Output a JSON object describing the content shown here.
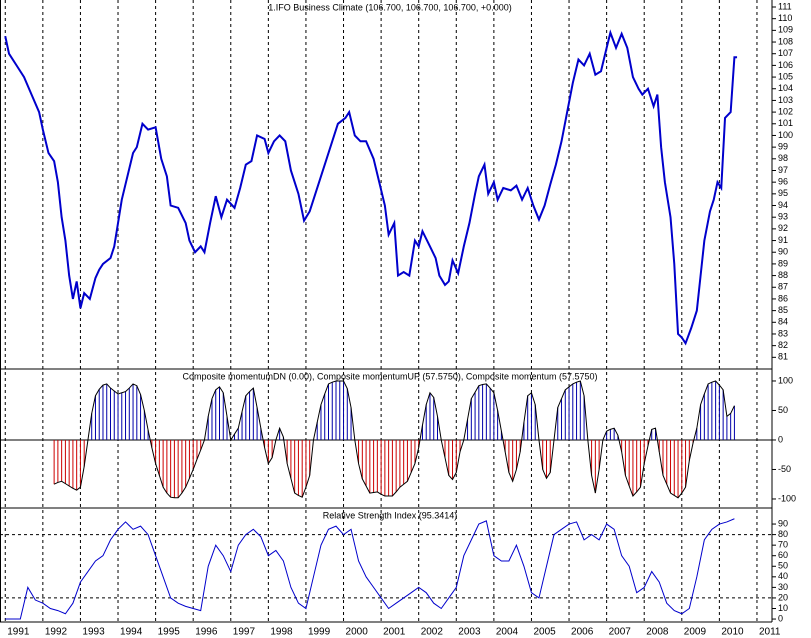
{
  "chart_data": [
    {
      "type": "line",
      "title": "1.IFO Business Climate (106.700, 106.700, 106.700, +0.000)",
      "color": "#0000cc",
      "x": [
        1991.0,
        1991.1,
        1991.3,
        1991.5,
        1991.7,
        1991.9,
        1992.0,
        1992.15,
        1992.3,
        1992.4,
        1992.5,
        1992.6,
        1992.7,
        1992.8,
        1992.9,
        1993.0,
        1993.1,
        1993.25,
        1993.4,
        1993.5,
        1993.6,
        1993.8,
        1993.9,
        1994.0,
        1994.1,
        1994.25,
        1994.4,
        1994.5,
        1994.65,
        1994.8,
        1995.0,
        1995.15,
        1995.3,
        1995.4,
        1995.6,
        1995.8,
        1995.9,
        1996.05,
        1996.2,
        1996.3,
        1996.45,
        1996.6,
        1996.75,
        1996.9,
        1997.1,
        1997.25,
        1997.4,
        1997.55,
        1997.7,
        1997.9,
        1998.0,
        1998.15,
        1998.3,
        1998.45,
        1998.6,
        1998.8,
        1998.95,
        1999.1,
        1999.25,
        1999.4,
        1999.55,
        1999.7,
        1999.85,
        2000.05,
        2000.15,
        2000.3,
        2000.45,
        2000.6,
        2000.8,
        2000.95,
        2001.1,
        2001.2,
        2001.35,
        2001.45,
        2001.6,
        2001.75,
        2001.9,
        2002.0,
        2002.1,
        2002.3,
        2002.45,
        2002.55,
        2002.7,
        2002.8,
        2002.9,
        2003.05,
        2003.2,
        2003.35,
        2003.5,
        2003.6,
        2003.75,
        2003.85,
        2004.0,
        2004.1,
        2004.25,
        2004.45,
        2004.6,
        2004.75,
        2004.9,
        2005.05,
        2005.2,
        2005.35,
        2005.5,
        2005.65,
        2005.8,
        2005.95,
        2006.1,
        2006.25,
        2006.4,
        2006.55,
        2006.7,
        2006.85,
        2007.0,
        2007.1,
        2007.25,
        2007.4,
        2007.55,
        2007.7,
        2007.85,
        2007.95,
        2008.1,
        2008.25,
        2008.35,
        2008.45,
        2008.55,
        2008.7,
        2008.8,
        2008.9,
        2009.0,
        2009.1,
        2009.25,
        2009.4,
        2009.5,
        2009.6,
        2009.75,
        2009.85,
        2009.95,
        2010.05,
        2010.15,
        2010.3,
        2010.4,
        2010.47
      ],
      "values": [
        108.5,
        107,
        106,
        105,
        103.5,
        102,
        100.5,
        98.5,
        97.8,
        96,
        93,
        91,
        88,
        86,
        87.5,
        85.2,
        86.5,
        86,
        87.8,
        88.5,
        89,
        89.5,
        90.5,
        92.5,
        94.5,
        96.5,
        98.5,
        99,
        101,
        100.5,
        100.7,
        98,
        96.5,
        94,
        93.8,
        92.5,
        91,
        90,
        90.5,
        90,
        92.5,
        94.8,
        93,
        94.5,
        93.8,
        95.5,
        97.5,
        97.8,
        100,
        99.7,
        98.5,
        99.5,
        100,
        99.5,
        97,
        95,
        92.7,
        93.5,
        95,
        96.5,
        98,
        99.5,
        101,
        101.5,
        102,
        100,
        99.5,
        99.5,
        98,
        96,
        94,
        91.5,
        92.5,
        88,
        88.3,
        88,
        91,
        90.5,
        91.8,
        90.5,
        89.5,
        88,
        87.2,
        87.5,
        89.3,
        88.2,
        90.5,
        92.5,
        95,
        96.5,
        97.5,
        95,
        96,
        94.5,
        95.5,
        95.3,
        95.7,
        94.5,
        95.5,
        94,
        92.8,
        94,
        95.8,
        97.5,
        99.5,
        102,
        104.5,
        106.5,
        106,
        107,
        105.2,
        105.5,
        107.5,
        108.8,
        107.5,
        108.7,
        107.5,
        105,
        104,
        103.5,
        104,
        102.5,
        103.5,
        99,
        96,
        93,
        89,
        83,
        82.7,
        82.2,
        83.5,
        85,
        88,
        91,
        93.5,
        94.5,
        96,
        95.5,
        101.5,
        102,
        106.7,
        106.7
      ],
      "xlim": [
        1990.86,
        2011.4
      ],
      "ylim": [
        80,
        111.6
      ],
      "yticks": [
        81,
        82,
        83,
        84,
        85,
        86,
        87,
        88,
        89,
        90,
        91,
        92,
        93,
        94,
        95,
        96,
        97,
        98,
        99,
        100,
        101,
        102,
        103,
        104,
        105,
        106,
        107,
        108,
        109,
        110,
        111
      ]
    },
    {
      "type": "bar",
      "title": "Composite momentumDN (0.00), Composite momentumUP (57.5750), Composite momentum (57.5750)",
      "color": "#000000",
      "positive_color": "#0000aa",
      "negative_color": "#cc0000",
      "x": [
        1992.3,
        1992.4,
        1992.5,
        1992.6,
        1992.7,
        1992.8,
        1992.9,
        1993.0,
        1993.1,
        1993.2,
        1993.3,
        1993.4,
        1993.5,
        1993.6,
        1993.7,
        1993.8,
        1993.9,
        1994.0,
        1994.1,
        1994.2,
        1994.3,
        1994.4,
        1994.5,
        1994.6,
        1994.7,
        1994.8,
        1994.9,
        1995.0,
        1995.1,
        1995.2,
        1995.3,
        1995.4,
        1995.5,
        1995.6,
        1995.7,
        1995.8,
        1995.9,
        1996.0,
        1996.1,
        1996.2,
        1996.3,
        1996.4,
        1996.5,
        1996.6,
        1996.7,
        1996.8,
        1996.9,
        1997.0,
        1997.1,
        1997.2,
        1997.3,
        1997.4,
        1997.5,
        1997.6,
        1997.7,
        1997.8,
        1997.9,
        1998.0,
        1998.1,
        1998.2,
        1998.3,
        1998.4,
        1998.5,
        1998.6,
        1998.7,
        1998.8,
        1998.9,
        1999.0,
        1999.1,
        1999.2,
        1999.3,
        1999.4,
        1999.5,
        1999.6,
        1999.7,
        1999.8,
        1999.9,
        2000.0,
        2000.1,
        2000.2,
        2000.3,
        2000.4,
        2000.5,
        2000.6,
        2000.7,
        2000.8,
        2000.9,
        2001.0,
        2001.1,
        2001.2,
        2001.3,
        2001.4,
        2001.5,
        2001.6,
        2001.7,
        2001.8,
        2001.9,
        2002.0,
        2002.1,
        2002.2,
        2002.3,
        2002.4,
        2002.5,
        2002.6,
        2002.7,
        2002.8,
        2002.9,
        2003.0,
        2003.1,
        2003.2,
        2003.3,
        2003.4,
        2003.5,
        2003.6,
        2003.7,
        2003.8,
        2003.9,
        2004.0,
        2004.1,
        2004.2,
        2004.3,
        2004.4,
        2004.5,
        2004.6,
        2004.7,
        2004.8,
        2004.9,
        2005.0,
        2005.1,
        2005.2,
        2005.3,
        2005.4,
        2005.5,
        2005.6,
        2005.7,
        2005.8,
        2005.9,
        2006.0,
        2006.1,
        2006.2,
        2006.3,
        2006.4,
        2006.5,
        2006.6,
        2006.7,
        2006.8,
        2006.9,
        2007.0,
        2007.1,
        2007.2,
        2007.3,
        2007.4,
        2007.5,
        2007.6,
        2007.7,
        2007.8,
        2007.9,
        2008.0,
        2008.1,
        2008.2,
        2008.3,
        2008.4,
        2008.5,
        2008.6,
        2008.7,
        2008.8,
        2008.9,
        2009.0,
        2009.1,
        2009.2,
        2009.3,
        2009.4,
        2009.5,
        2009.6,
        2009.7,
        2009.8,
        2009.9,
        2010.0,
        2010.1,
        2010.2,
        2010.3,
        2010.4
      ],
      "values": [
        -75,
        -72,
        -70,
        -74,
        -78,
        -82,
        -85,
        -80,
        -45,
        0,
        45,
        75,
        86,
        93,
        95,
        88,
        83,
        78,
        80,
        82,
        88,
        95,
        92,
        77,
        50,
        17,
        -13,
        -40,
        -60,
        -80,
        -90,
        -97,
        -98,
        -98,
        -90,
        -80,
        -65,
        -50,
        -33,
        -17,
        0,
        40,
        70,
        85,
        90,
        80,
        40,
        0,
        10,
        20,
        48,
        75,
        82,
        88,
        55,
        20,
        -13,
        -40,
        -30,
        0,
        20,
        5,
        -40,
        -65,
        -90,
        -94,
        -97,
        -80,
        -60,
        0,
        30,
        60,
        78,
        95,
        98,
        100,
        100,
        100,
        87,
        55,
        0,
        -40,
        -66,
        -78,
        -90,
        -89,
        -88,
        -92,
        -95,
        -95,
        -95,
        -88,
        -80,
        -75,
        -70,
        -55,
        -40,
        -13,
        25,
        60,
        80,
        72,
        40,
        0,
        -30,
        -60,
        -67,
        -55,
        -20,
        0,
        35,
        70,
        81,
        92,
        94,
        95,
        88,
        80,
        50,
        15,
        -20,
        -55,
        -70,
        -50,
        -20,
        30,
        75,
        80,
        60,
        0,
        -50,
        -65,
        -55,
        0,
        55,
        70,
        85,
        90,
        95,
        98,
        100,
        75,
        0,
        -60,
        -90,
        -50,
        0,
        15,
        18,
        20,
        8,
        -20,
        -60,
        -78,
        -95,
        -88,
        -80,
        -40,
        -10,
        18,
        20,
        -20,
        -60,
        -75,
        -90,
        -94,
        -98,
        -90,
        -80,
        -35,
        -5,
        20,
        60,
        78,
        95,
        98,
        100,
        93,
        85,
        40,
        45,
        58
      ],
      "xlim": [
        1990.86,
        2011.4
      ],
      "ylim": [
        -115.3,
        120.3
      ],
      "yticks": [
        100,
        50,
        0,
        -50,
        -100
      ],
      "hlines": [
        0
      ]
    },
    {
      "type": "line",
      "title": "Relative Strength Index (95.3414)",
      "color": "#0000cc",
      "x": [
        1991.0,
        1991.2,
        1991.4,
        1991.6,
        1991.8,
        1992.0,
        1992.2,
        1992.4,
        1992.6,
        1992.8,
        1993.0,
        1993.2,
        1993.4,
        1993.6,
        1993.8,
        1994.0,
        1994.2,
        1994.4,
        1994.6,
        1994.8,
        1995.0,
        1995.2,
        1995.4,
        1995.6,
        1995.8,
        1996.0,
        1996.2,
        1996.4,
        1996.6,
        1996.8,
        1997.0,
        1997.2,
        1997.4,
        1997.6,
        1997.8,
        1998.0,
        1998.2,
        1998.4,
        1998.6,
        1998.8,
        1999.0,
        1999.2,
        1999.4,
        1999.6,
        1999.8,
        2000.0,
        2000.2,
        2000.4,
        2000.6,
        2000.8,
        2001.0,
        2001.2,
        2001.4,
        2001.6,
        2001.8,
        2002.0,
        2002.2,
        2002.4,
        2002.6,
        2002.8,
        2003.0,
        2003.2,
        2003.4,
        2003.6,
        2003.8,
        2004.0,
        2004.2,
        2004.4,
        2004.6,
        2004.8,
        2005.0,
        2005.2,
        2005.4,
        2005.6,
        2005.8,
        2006.0,
        2006.2,
        2006.4,
        2006.6,
        2006.8,
        2007.0,
        2007.2,
        2007.4,
        2007.6,
        2007.8,
        2008.0,
        2008.2,
        2008.4,
        2008.6,
        2008.8,
        2009.0,
        2009.2,
        2009.4,
        2009.6,
        2009.8,
        2010.0,
        2010.2,
        2010.4
      ],
      "values": [
        0,
        0,
        0,
        30,
        18,
        15,
        10,
        8,
        5,
        15,
        35,
        45,
        55,
        60,
        75,
        85,
        92,
        85,
        88,
        80,
        60,
        40,
        20,
        15,
        12,
        10,
        8,
        50,
        70,
        60,
        45,
        70,
        80,
        85,
        78,
        60,
        65,
        55,
        30,
        15,
        10,
        40,
        70,
        85,
        88,
        80,
        85,
        55,
        40,
        30,
        20,
        10,
        15,
        20,
        25,
        30,
        25,
        15,
        10,
        20,
        30,
        60,
        75,
        90,
        93,
        60,
        55,
        55,
        70,
        50,
        25,
        20,
        50,
        80,
        85,
        90,
        92,
        75,
        80,
        75,
        90,
        85,
        60,
        50,
        25,
        30,
        45,
        35,
        15,
        8,
        5,
        10,
        40,
        75,
        85,
        90,
        92,
        95
      ],
      "xlim": [
        1990.86,
        2011.4
      ],
      "ylim": [
        -2.8,
        105.2
      ],
      "yticks": [
        0,
        10,
        20,
        30,
        40,
        50,
        60,
        70,
        80,
        90
      ],
      "hlines": [
        20,
        80
      ],
      "xticks": [
        1991,
        1992,
        1993,
        1994,
        1995,
        1996,
        1997,
        1998,
        1999,
        2000,
        2001,
        2002,
        2003,
        2004,
        2005,
        2006,
        2007,
        2008,
        2009,
        2010,
        2011
      ]
    }
  ]
}
